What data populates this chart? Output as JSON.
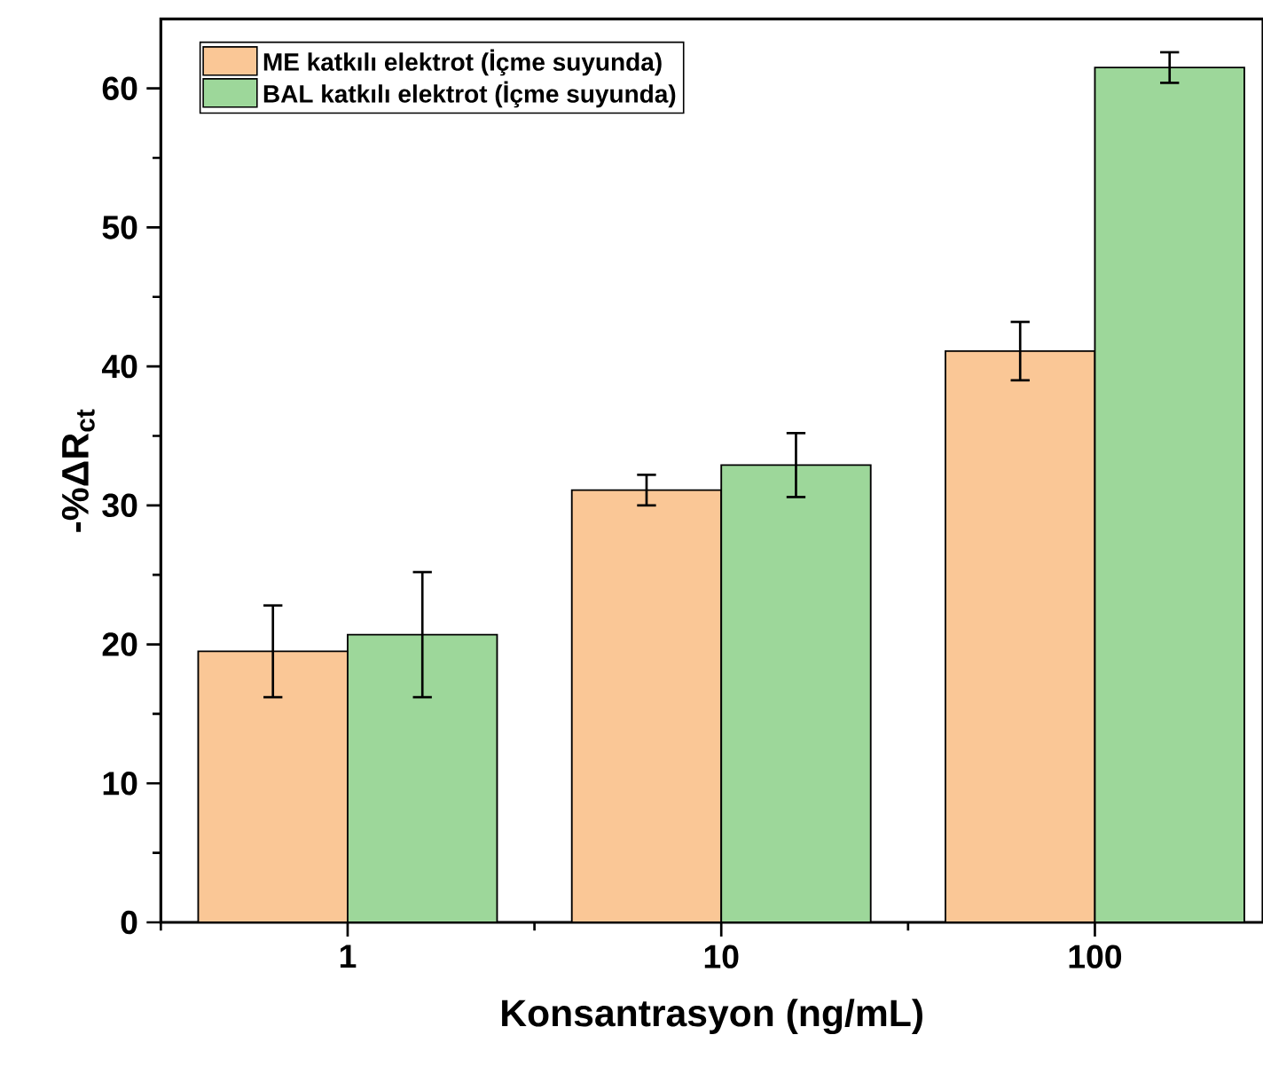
{
  "chart_data": {
    "type": "bar",
    "xlabel": "Konsantrasyon (ng/mL)",
    "ylabel": "-%ΔR$_{ct}$",
    "categories": [
      "1",
      "10",
      "100"
    ],
    "series": [
      {
        "name": "ME katkılı elektrot (İçme suyunda)",
        "color": "#fac796",
        "values": [
          19.5,
          31.1,
          41.1
        ],
        "errors": [
          [
            16.2,
            22.8
          ],
          [
            30.0,
            32.2
          ],
          [
            39.0,
            43.2
          ]
        ]
      },
      {
        "name": "BAL katkılı elektrot (İçme suyunda)",
        "color": "#9dd79a",
        "values": [
          20.7,
          32.9,
          61.5
        ],
        "errors": [
          [
            16.2,
            25.2
          ],
          [
            30.6,
            35.2
          ],
          [
            60.4,
            62.6
          ]
        ]
      }
    ],
    "ylim": [
      0,
      65
    ],
    "yticks": [
      0,
      10,
      20,
      30,
      40,
      50,
      60
    ],
    "grid": false,
    "legend": "top left"
  }
}
